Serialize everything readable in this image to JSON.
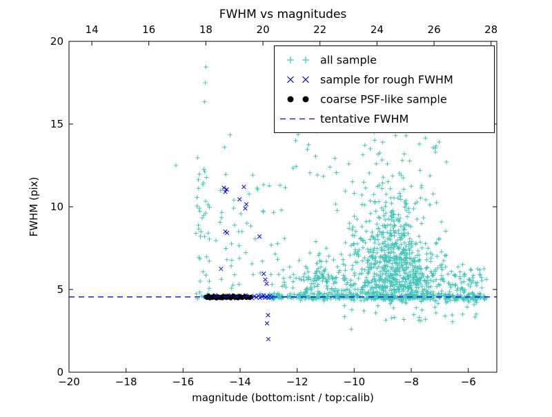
{
  "chart_data": {
    "type": "scatter",
    "title": "FWHM vs magnitudes",
    "xlabel": "magnitude (bottom:isnt / top:calib)",
    "ylabel": "FWHM (pix)",
    "xlim": [
      -20,
      -5
    ],
    "ylim": [
      0,
      20
    ],
    "x_ticks_bottom": [
      -20,
      -18,
      -16,
      -14,
      -12,
      -10,
      -8,
      -6
    ],
    "x_tick_labels_bottom": [
      "−20",
      "−18",
      "−16",
      "−14",
      "−12",
      "−10",
      "−8",
      "−6"
    ],
    "x_ticks_top": [
      14,
      16,
      18,
      20,
      22,
      24,
      26,
      28
    ],
    "x_tick_labels_top": [
      "14",
      "16",
      "18",
      "20",
      "22",
      "24",
      "26",
      "28"
    ],
    "top_axis_offset": 33.2,
    "y_ticks": [
      0,
      5,
      10,
      15,
      20
    ],
    "y_tick_labels": [
      "0",
      "5",
      "10",
      "15",
      "20"
    ],
    "grid": false,
    "legend_position": "upper right",
    "tentative_fwhm": 4.55,
    "series": [
      {
        "name": "all sample",
        "marker": "plus",
        "color": "#40c4b8",
        "outliers": [
          [
            -16.25,
            12.5
          ],
          [
            -15.2,
            18.45
          ],
          [
            -15.22,
            17.5
          ],
          [
            -15.25,
            16.35
          ],
          [
            -14.55,
            13.6
          ],
          [
            -14.35,
            14.35
          ],
          [
            -12.05,
            14.0
          ],
          [
            -11.35,
            13.05
          ],
          [
            -10.3,
            14.7
          ],
          [
            -9.55,
            14.85
          ],
          [
            -9.3,
            14.5
          ],
          [
            -8.55,
            14.3
          ],
          [
            -9.0,
            13.9
          ],
          [
            -7.15,
            13.3
          ],
          [
            -10.85,
            12.4
          ],
          [
            -12.6,
            11.3
          ],
          [
            -12.55,
            9.8
          ],
          [
            -5.45,
            6.25
          ],
          [
            -5.6,
            5.9
          ],
          [
            -10.1,
            2.6
          ],
          [
            -7.5,
            3.2
          ],
          [
            -6.55,
            3.05
          ],
          [
            -15.4,
            5.5
          ],
          [
            -15.35,
            4.6
          ]
        ],
        "clusters": [
          {
            "dist": "uniform",
            "n": 40,
            "x": [
              -15.55,
              -15.05
            ],
            "y": [
              4.3,
              13.0
            ]
          },
          {
            "dist": "uniform",
            "n": 55,
            "x": [
              -15.1,
              -12.4
            ],
            "y": [
              4.3,
              12.0
            ]
          },
          {
            "dist": "band",
            "n": 380,
            "x": [
              -13.3,
              -5.4
            ],
            "ymean": 4.55,
            "ysd": 0.1
          },
          {
            "dist": "uniform",
            "n": 160,
            "x": [
              -11.8,
              -5.8
            ],
            "y": [
              4.6,
              5.9
            ]
          },
          {
            "dist": "gauss",
            "n": 520,
            "cx": -8.55,
            "cy": 6.1,
            "sx": 0.8,
            "sy": 1.2,
            "clipx": [
              -11.6,
              -5.4
            ],
            "clipy": [
              4.25,
              15.0
            ]
          },
          {
            "dist": "gauss",
            "n": 170,
            "cx": -8.8,
            "cy": 9.3,
            "sx": 0.75,
            "sy": 1.6,
            "clipx": [
              -11.5,
              -6.0
            ],
            "clipy": [
              4.3,
              15.0
            ]
          },
          {
            "dist": "gauss",
            "n": 90,
            "cx": -11.3,
            "cy": 5.4,
            "sx": 0.7,
            "sy": 0.9,
            "clipx": [
              -12.6,
              -9.8
            ],
            "clipy": [
              4.3,
              10.0
            ]
          },
          {
            "dist": "uniform",
            "n": 30,
            "x": [
              -12.3,
              -6.6
            ],
            "y": [
              11.5,
              14.6
            ]
          },
          {
            "dist": "uniform",
            "n": 35,
            "x": [
              -10.6,
              -5.6
            ],
            "y": [
              3.1,
              4.35
            ]
          },
          {
            "dist": "uniform",
            "n": 40,
            "x": [
              -6.9,
              -5.35
            ],
            "y": [
              4.3,
              6.6
            ]
          }
        ]
      },
      {
        "name": "sample for rough FWHM",
        "marker": "x",
        "color": "#0000ee",
        "points": [
          [
            -15.02,
            4.6
          ],
          [
            -14.93,
            4.5
          ],
          [
            -14.87,
            4.65
          ],
          [
            -14.78,
            4.5
          ],
          [
            -14.7,
            4.58
          ],
          [
            -14.63,
            4.48
          ],
          [
            -14.55,
            4.62
          ],
          [
            -14.47,
            4.5
          ],
          [
            -14.4,
            4.55
          ],
          [
            -14.32,
            4.65
          ],
          [
            -14.25,
            4.48
          ],
          [
            -14.18,
            4.58
          ],
          [
            -14.1,
            4.5
          ],
          [
            -14.02,
            4.62
          ],
          [
            -13.95,
            4.5
          ],
          [
            -13.88,
            4.56
          ],
          [
            -13.8,
            4.65
          ],
          [
            -13.72,
            4.5
          ],
          [
            -13.65,
            4.58
          ],
          [
            -13.58,
            4.48
          ],
          [
            -13.5,
            4.6
          ],
          [
            -13.43,
            4.52
          ],
          [
            -13.36,
            4.62
          ],
          [
            -13.3,
            4.5
          ],
          [
            -13.24,
            4.56
          ],
          [
            -13.18,
            4.65
          ],
          [
            -13.12,
            4.5
          ],
          [
            -13.06,
            4.58
          ],
          [
            -13.0,
            4.5
          ],
          [
            -12.95,
            4.6
          ],
          [
            -12.9,
            4.52
          ],
          [
            -14.57,
            11.15
          ],
          [
            -14.52,
            10.9
          ],
          [
            -14.47,
            11.05
          ],
          [
            -14.02,
            10.45
          ],
          [
            -13.87,
            11.2
          ],
          [
            -13.82,
            9.9
          ],
          [
            -13.78,
            10.15
          ],
          [
            -14.52,
            8.5
          ],
          [
            -14.46,
            8.42
          ],
          [
            -13.32,
            8.2
          ],
          [
            -14.67,
            6.25
          ],
          [
            -13.17,
            5.95
          ],
          [
            -13.12,
            5.6
          ],
          [
            -13.07,
            5.35
          ],
          [
            -13.02,
            3.45
          ],
          [
            -13.06,
            2.95
          ],
          [
            -13.01,
            2.0
          ]
        ]
      },
      {
        "name": "coarse PSF-like sample",
        "marker": "dot",
        "color": "#000000",
        "points": [
          [
            -15.2,
            4.55
          ],
          [
            -15.16,
            4.5
          ],
          [
            -15.11,
            4.62
          ],
          [
            -15.06,
            4.48
          ],
          [
            -15.02,
            4.56
          ],
          [
            -14.97,
            4.5
          ],
          [
            -14.92,
            4.6
          ],
          [
            -14.88,
            4.52
          ],
          [
            -14.83,
            4.47
          ],
          [
            -14.78,
            4.58
          ],
          [
            -14.73,
            4.5
          ],
          [
            -14.68,
            4.55
          ],
          [
            -14.63,
            4.48
          ],
          [
            -14.58,
            4.6
          ],
          [
            -14.53,
            4.54
          ],
          [
            -14.48,
            4.5
          ],
          [
            -14.43,
            4.6
          ],
          [
            -14.38,
            4.55
          ],
          [
            -14.33,
            4.48
          ],
          [
            -14.28,
            4.55
          ],
          [
            -14.23,
            4.62
          ],
          [
            -14.18,
            4.5
          ],
          [
            -14.13,
            4.56
          ],
          [
            -14.08,
            4.48
          ],
          [
            -14.03,
            4.6
          ],
          [
            -13.98,
            4.54
          ],
          [
            -13.93,
            4.5
          ],
          [
            -13.88,
            4.56
          ],
          [
            -13.83,
            4.6
          ],
          [
            -13.78,
            4.5
          ],
          [
            -13.73,
            4.55
          ],
          [
            -13.67,
            4.5
          ],
          [
            -13.62,
            4.55
          ]
        ]
      },
      {
        "name": "tentative FWHM",
        "marker": "dashline",
        "color": "#0000ee",
        "y": 4.55
      }
    ]
  }
}
